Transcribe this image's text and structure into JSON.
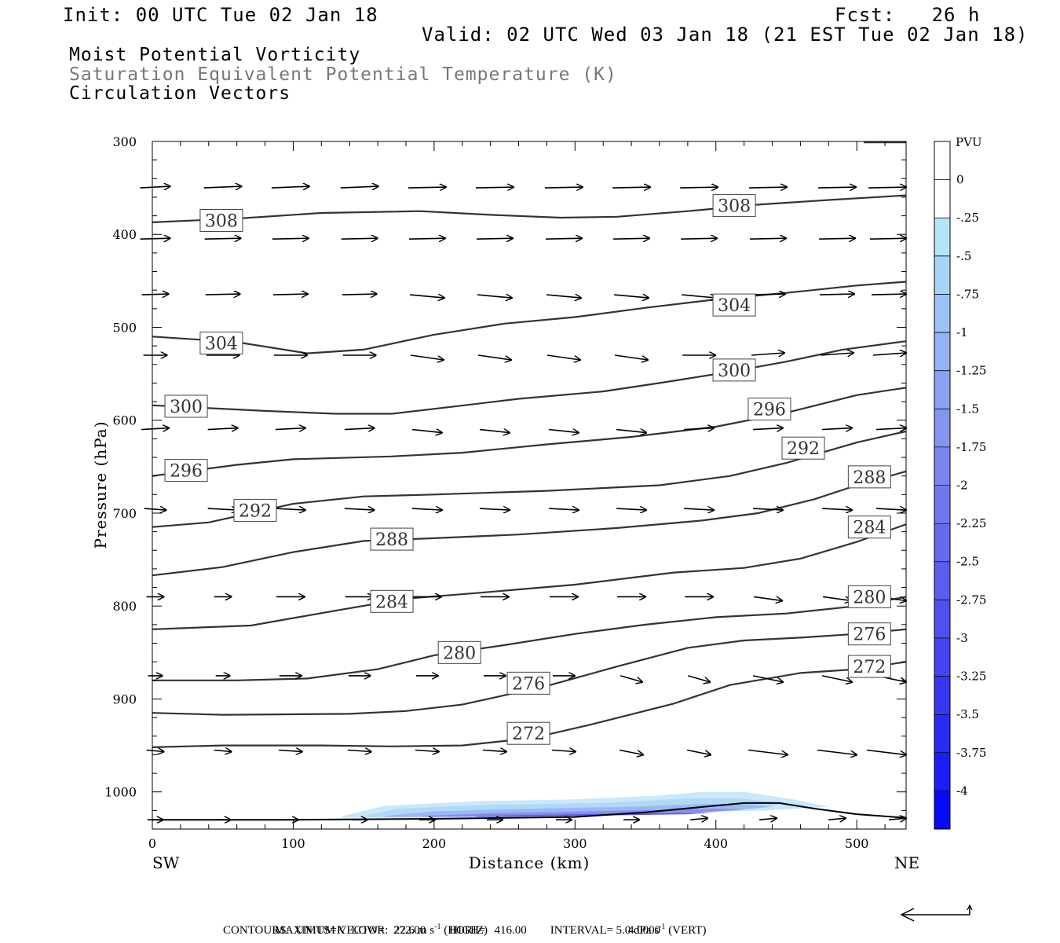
{
  "header": {
    "init": "Init: 00 UTC Tue 02 Jan 18",
    "fcst": "Fcst:   26 h",
    "valid": "Valid: 02 UTC Wed 03 Jan 18 (21 EST Tue 02 Jan 18)"
  },
  "fields": {
    "line1": "Moist Potential Vorticity",
    "line2": "Saturation Equivalent Potential Temperature (K)",
    "line3": "Circulation Vectors"
  },
  "footer": {
    "max_vector": "MAXIMUM VECTOR:  22.6 m s",
    "horiz": " (HORIZ)",
    "vert_value": "5.0 dPa s",
    "vert": " (VERT)",
    "exp": "-1",
    "contours": "CONTOURS:  UNITS=K  LOW=   272.00        HIGH=   416.00        INTERVAL=     4.0000"
  },
  "colors": {
    "contour": "#333333",
    "pv_light": "#c8e8fb",
    "pv_dark": "#2a2af0"
  },
  "chart_data": {
    "type": "cross-section",
    "xlabel": "Distance (km)",
    "ylabel": "Pressure (hPa)",
    "xlim": [
      0,
      535
    ],
    "ylim": [
      300,
      1040
    ],
    "y_scale": "linear-inverted",
    "x_ticks": [
      0,
      100,
      200,
      300,
      400,
      500
    ],
    "y_ticks": [
      300,
      400,
      500,
      600,
      700,
      800,
      900,
      1000
    ],
    "endpoint_labels": {
      "left": "SW",
      "right": "NE"
    },
    "colorbar": {
      "units": "PVU",
      "labels": [
        "0",
        "-.25",
        "-.5",
        "-.75",
        "-1",
        "-1.25",
        "-1.5",
        "-1.75",
        "-2",
        "-2.25",
        "-2.5",
        "-2.75",
        "-3",
        "-3.25",
        "-3.5",
        "-3.75",
        "-4"
      ]
    },
    "contours": [
      {
        "label": "308",
        "points": [
          [
            0,
            387
          ],
          [
            60,
            383
          ],
          [
            120,
            377
          ],
          [
            190,
            375
          ],
          [
            240,
            379
          ],
          [
            290,
            382
          ],
          [
            330,
            381
          ],
          [
            380,
            375
          ],
          [
            430,
            368
          ],
          [
            480,
            363
          ],
          [
            535,
            358
          ]
        ],
        "label_positions": [
          [
            49,
            385
          ],
          [
            413,
            369
          ]
        ]
      },
      {
        "label": "304",
        "points": [
          [
            0,
            510
          ],
          [
            60,
            516
          ],
          [
            110,
            528
          ],
          [
            150,
            524
          ],
          [
            200,
            508
          ],
          [
            250,
            496
          ],
          [
            300,
            489
          ],
          [
            350,
            479
          ],
          [
            400,
            470
          ],
          [
            450,
            463
          ],
          [
            500,
            455
          ],
          [
            535,
            451
          ]
        ],
        "label_positions": [
          [
            49,
            517
          ],
          [
            413,
            476
          ]
        ]
      },
      {
        "label": "300",
        "points": [
          [
            0,
            584
          ],
          [
            80,
            590
          ],
          [
            130,
            593
          ],
          [
            170,
            593
          ],
          [
            210,
            586
          ],
          [
            260,
            577
          ],
          [
            320,
            569
          ],
          [
            360,
            560
          ],
          [
            410,
            548
          ],
          [
            450,
            537
          ],
          [
            490,
            524
          ],
          [
            535,
            515
          ]
        ],
        "label_positions": [
          [
            24,
            585
          ],
          [
            413,
            546
          ]
        ]
      },
      {
        "label": "296",
        "points": [
          [
            0,
            660
          ],
          [
            60,
            648
          ],
          [
            100,
            642
          ],
          [
            170,
            639
          ],
          [
            220,
            635
          ],
          [
            280,
            626
          ],
          [
            340,
            618
          ],
          [
            400,
            607
          ],
          [
            450,
            592
          ],
          [
            500,
            573
          ],
          [
            535,
            565
          ]
        ],
        "label_positions": [
          [
            24,
            654
          ],
          [
            438,
            588
          ]
        ]
      },
      {
        "label": "292",
        "points": [
          [
            0,
            715
          ],
          [
            40,
            710
          ],
          [
            100,
            690
          ],
          [
            150,
            682
          ],
          [
            200,
            680
          ],
          [
            280,
            676
          ],
          [
            360,
            670
          ],
          [
            410,
            660
          ],
          [
            450,
            646
          ],
          [
            500,
            624
          ],
          [
            535,
            612
          ]
        ],
        "label_positions": [
          [
            73,
            697
          ],
          [
            462,
            630
          ]
        ]
      },
      {
        "label": "288",
        "points": [
          [
            0,
            767
          ],
          [
            50,
            758
          ],
          [
            100,
            742
          ],
          [
            150,
            730
          ],
          [
            200,
            727
          ],
          [
            260,
            723
          ],
          [
            330,
            716
          ],
          [
            390,
            708
          ],
          [
            430,
            700
          ],
          [
            470,
            685
          ],
          [
            500,
            670
          ],
          [
            535,
            655
          ]
        ],
        "label_positions": [
          [
            170,
            728
          ],
          [
            509,
            661
          ]
        ]
      },
      {
        "label": "284",
        "points": [
          [
            0,
            825
          ],
          [
            70,
            821
          ],
          [
            130,
            805
          ],
          [
            180,
            792
          ],
          [
            230,
            786
          ],
          [
            300,
            777
          ],
          [
            370,
            764
          ],
          [
            420,
            759
          ],
          [
            460,
            749
          ],
          [
            500,
            731
          ],
          [
            535,
            712
          ]
        ],
        "label_positions": [
          [
            170,
            795
          ],
          [
            509,
            715
          ]
        ]
      },
      {
        "label": "280",
        "points": [
          [
            0,
            880
          ],
          [
            60,
            880
          ],
          [
            110,
            878
          ],
          [
            160,
            868
          ],
          [
            200,
            853
          ],
          [
            250,
            842
          ],
          [
            300,
            830
          ],
          [
            350,
            820
          ],
          [
            400,
            812
          ],
          [
            450,
            808
          ],
          [
            500,
            800
          ],
          [
            535,
            790
          ]
        ],
        "label_positions": [
          [
            218,
            850
          ],
          [
            509,
            790
          ]
        ]
      },
      {
        "label": "276",
        "points": [
          [
            0,
            915
          ],
          [
            50,
            917
          ],
          [
            140,
            916
          ],
          [
            180,
            913
          ],
          [
            220,
            906
          ],
          [
            280,
            886
          ],
          [
            330,
            865
          ],
          [
            380,
            845
          ],
          [
            420,
            837
          ],
          [
            460,
            834
          ],
          [
            500,
            830
          ],
          [
            535,
            825
          ]
        ],
        "label_positions": [
          [
            267,
            883
          ],
          [
            509,
            830
          ]
        ]
      },
      {
        "label": "272",
        "points": [
          [
            0,
            952
          ],
          [
            50,
            950
          ],
          [
            120,
            950
          ],
          [
            170,
            951
          ],
          [
            220,
            950
          ],
          [
            270,
            942
          ],
          [
            310,
            928
          ],
          [
            370,
            905
          ],
          [
            410,
            885
          ],
          [
            460,
            872
          ],
          [
            500,
            868
          ],
          [
            535,
            860
          ]
        ],
        "label_positions": [
          [
            267,
            937
          ],
          [
            509,
            865
          ]
        ]
      }
    ],
    "pv_shading": [
      {
        "level": "-0.25",
        "points": [
          [
            135,
            1026
          ],
          [
            165,
            1015
          ],
          [
            230,
            1010
          ],
          [
            300,
            1008
          ],
          [
            360,
            1004
          ],
          [
            390,
            1000
          ],
          [
            420,
            1000
          ],
          [
            455,
            1008
          ],
          [
            480,
            1016
          ],
          [
            435,
            1020
          ],
          [
            330,
            1024
          ],
          [
            220,
            1028
          ],
          [
            135,
            1028
          ]
        ]
      },
      {
        "level": "-0.5",
        "points": [
          [
            150,
            1026
          ],
          [
            175,
            1018
          ],
          [
            240,
            1014
          ],
          [
            320,
            1012
          ],
          [
            380,
            1007
          ],
          [
            415,
            1007
          ],
          [
            450,
            1012
          ],
          [
            430,
            1018
          ],
          [
            320,
            1024
          ],
          [
            200,
            1027
          ],
          [
            150,
            1027
          ]
        ]
      },
      {
        "level": "-1",
        "points": [
          [
            165,
            1026
          ],
          [
            200,
            1021
          ],
          [
            270,
            1018
          ],
          [
            340,
            1016
          ],
          [
            390,
            1013
          ],
          [
            420,
            1013
          ],
          [
            440,
            1016
          ],
          [
            410,
            1020
          ],
          [
            300,
            1025
          ],
          [
            200,
            1027
          ],
          [
            165,
            1027
          ]
        ]
      },
      {
        "level": "-1.5",
        "points": [
          [
            190,
            1026
          ],
          [
            240,
            1023
          ],
          [
            310,
            1021
          ],
          [
            370,
            1019
          ],
          [
            400,
            1018
          ],
          [
            420,
            1019
          ],
          [
            390,
            1022
          ],
          [
            290,
            1026
          ],
          [
            200,
            1027
          ]
        ]
      },
      {
        "level": "-2.25",
        "points": [
          [
            230,
            1026
          ],
          [
            300,
            1024
          ],
          [
            360,
            1023
          ],
          [
            400,
            1022
          ],
          [
            380,
            1024
          ],
          [
            300,
            1026
          ],
          [
            230,
            1027
          ]
        ]
      }
    ],
    "surface": {
      "points": [
        [
          0,
          1030
        ],
        [
          100,
          1030
        ],
        [
          200,
          1029
        ],
        [
          300,
          1027
        ],
        [
          350,
          1022
        ],
        [
          420,
          1012
        ],
        [
          445,
          1012
        ],
        [
          470,
          1018
        ],
        [
          500,
          1024
        ],
        [
          535,
          1028
        ]
      ]
    },
    "vector_grid": {
      "x": [
        2,
        50,
        98,
        147,
        195,
        243,
        292,
        340,
        388,
        437,
        486,
        535
      ],
      "levels": [
        350,
        405,
        465,
        530,
        610,
        695,
        790,
        875,
        955,
        1030
      ]
    },
    "reference_vector": {
      "horiz": "22.6 m s-1",
      "vert": "5.0 dPa s-1"
    }
  }
}
